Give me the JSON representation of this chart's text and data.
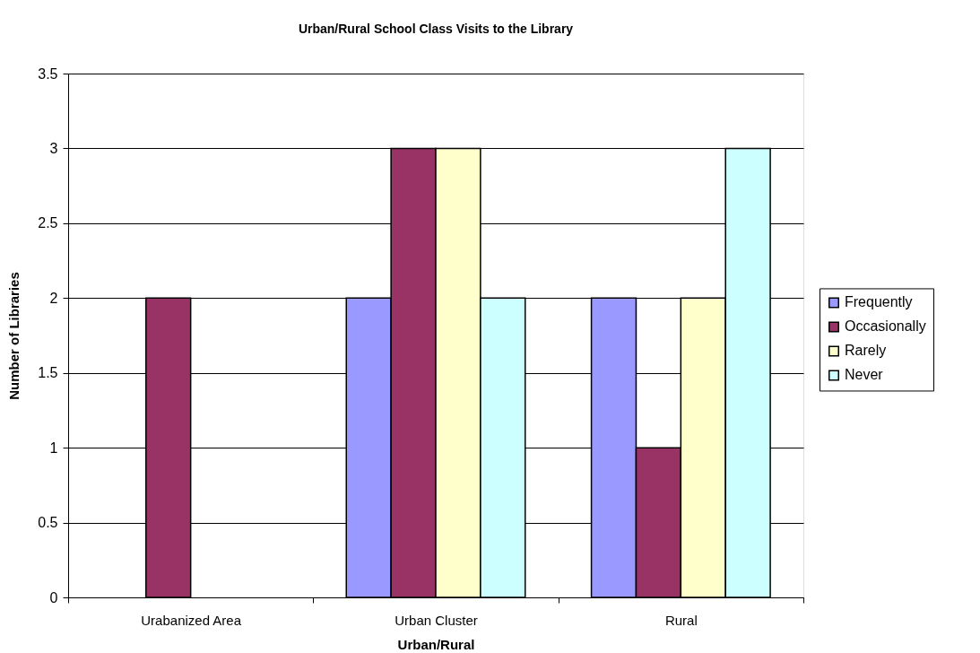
{
  "chart_data": {
    "type": "bar",
    "title": "Urban/Rural School Class Visits to the Library",
    "xlabel": "Urban/Rural",
    "ylabel": "Number of Libraries",
    "categories": [
      "Urabanized Area",
      "Urban Cluster",
      "Rural"
    ],
    "series": [
      {
        "name": "Frequently",
        "color": "#9999ff",
        "values": [
          null,
          2,
          2
        ]
      },
      {
        "name": "Occasionally",
        "color": "#993366",
        "values": [
          2,
          3,
          1
        ]
      },
      {
        "name": "Rarely",
        "color": "#ffffcc",
        "values": [
          null,
          3,
          2
        ]
      },
      {
        "name": "Never",
        "color": "#ccffff",
        "values": [
          null,
          2,
          3
        ]
      }
    ],
    "ylim": [
      0,
      3.5
    ],
    "yticks": [
      0,
      0.5,
      1,
      1.5,
      2,
      2.5,
      3,
      3.5
    ],
    "grid": "y",
    "legend": "right"
  }
}
